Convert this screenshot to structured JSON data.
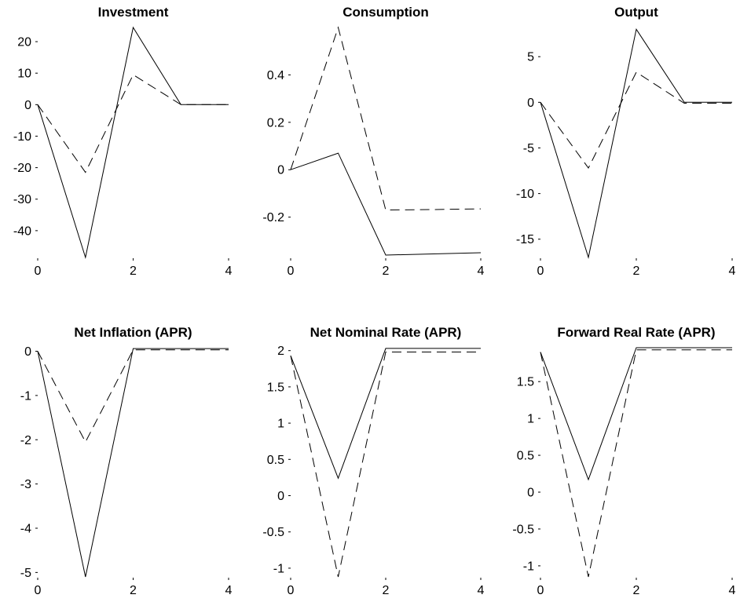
{
  "chart_data": [
    {
      "type": "line",
      "title": "Investment",
      "xlim": [
        0,
        4
      ],
      "ylim": [
        -48.5,
        24.5
      ],
      "xticks": [
        0,
        2,
        4
      ],
      "xtick_labels": [
        "0",
        "2",
        "4"
      ],
      "yticks": [
        20,
        10,
        0,
        -10,
        -20,
        -30,
        -40
      ],
      "ytick_labels": [
        "20",
        "10",
        "0",
        "-10",
        "-20",
        "-30",
        "-40"
      ],
      "series": [
        {
          "style": "solid",
          "x": [
            0,
            1,
            2,
            3,
            4
          ],
          "y": [
            0,
            -48.5,
            24.5,
            0,
            0
          ]
        },
        {
          "style": "dashed",
          "x": [
            0,
            1,
            2,
            3,
            4
          ],
          "y": [
            0,
            -21.5,
            9.5,
            0,
            0
          ]
        }
      ]
    },
    {
      "type": "line",
      "title": "Consumption",
      "xlim": [
        0,
        4
      ],
      "ylim": [
        -0.37,
        0.6
      ],
      "xticks": [
        0,
        2,
        4
      ],
      "xtick_labels": [
        "0",
        "2",
        "4"
      ],
      "yticks": [
        0.4,
        0.2,
        0,
        -0.2
      ],
      "ytick_labels": [
        "0.4",
        "0.2",
        "0",
        "-0.2"
      ],
      "series": [
        {
          "style": "solid",
          "x": [
            0,
            1,
            2,
            3,
            4
          ],
          "y": [
            0,
            0.07,
            -0.36,
            -0.355,
            -0.35
          ]
        },
        {
          "style": "dashed",
          "x": [
            0,
            1,
            2,
            3,
            4
          ],
          "y": [
            0,
            0.6,
            -0.17,
            -0.168,
            -0.165
          ]
        }
      ]
    },
    {
      "type": "line",
      "title": "Output",
      "xlim": [
        0,
        4
      ],
      "ylim": [
        -17,
        8.2
      ],
      "xticks": [
        0,
        2,
        4
      ],
      "xtick_labels": [
        "0",
        "2",
        "4"
      ],
      "yticks": [
        5,
        0,
        -5,
        -10,
        -15
      ],
      "ytick_labels": [
        "5",
        "0",
        "-5",
        "-10",
        "-15"
      ],
      "series": [
        {
          "style": "solid",
          "x": [
            0,
            1,
            2,
            3,
            4
          ],
          "y": [
            0,
            -17,
            8,
            0,
            0
          ]
        },
        {
          "style": "dashed",
          "x": [
            0,
            1,
            2,
            3,
            4
          ],
          "y": [
            0,
            -7.2,
            3.3,
            -0.1,
            -0.1
          ]
        }
      ]
    },
    {
      "type": "line",
      "title": "Net Inflation (APR)",
      "xlim": [
        0,
        4
      ],
      "ylim": [
        -5.1,
        0.08
      ],
      "xticks": [
        0,
        2,
        4
      ],
      "xtick_labels": [
        "0",
        "2",
        "4"
      ],
      "yticks": [
        0,
        -1,
        -2,
        -3,
        -4,
        -5
      ],
      "ytick_labels": [
        "0",
        "-1",
        "-2",
        "-3",
        "-4",
        "-5"
      ],
      "series": [
        {
          "style": "solid",
          "x": [
            0,
            1,
            2,
            3,
            4
          ],
          "y": [
            0,
            -5.1,
            0.06,
            0.06,
            0.06
          ]
        },
        {
          "style": "dashed",
          "x": [
            0,
            1,
            2,
            3,
            4
          ],
          "y": [
            0,
            -2.05,
            0.03,
            0.03,
            0.03
          ]
        }
      ]
    },
    {
      "type": "line",
      "title": "Net Nominal Rate (APR)",
      "xlim": [
        0,
        4
      ],
      "ylim": [
        -1.12,
        2.04
      ],
      "xticks": [
        0,
        2,
        4
      ],
      "xtick_labels": [
        "0",
        "2",
        "4"
      ],
      "yticks": [
        2,
        1.5,
        1,
        0.5,
        0,
        -0.5,
        -1
      ],
      "ytick_labels": [
        "2",
        "1.5",
        "1",
        "0.5",
        "0",
        "-0.5",
        "-1"
      ],
      "series": [
        {
          "style": "solid",
          "x": [
            0,
            1,
            2,
            3,
            4
          ],
          "y": [
            1.93,
            0.24,
            2.03,
            2.03,
            2.03
          ]
        },
        {
          "style": "dashed",
          "x": [
            0,
            1,
            2,
            3,
            4
          ],
          "y": [
            1.93,
            -1.12,
            1.98,
            1.98,
            1.98
          ]
        }
      ]
    },
    {
      "type": "line",
      "title": "Forward Real Rate (APR)",
      "xlim": [
        0,
        4
      ],
      "ylim": [
        -1.15,
        1.96
      ],
      "xticks": [
        0,
        2,
        4
      ],
      "xtick_labels": [
        "0",
        "2",
        "4"
      ],
      "yticks": [
        1.5,
        1,
        0.5,
        0,
        -0.5,
        -1
      ],
      "ytick_labels": [
        "1.5",
        "1",
        "0.5",
        "0",
        "-0.5",
        "-1"
      ],
      "series": [
        {
          "style": "solid",
          "x": [
            0,
            1,
            2,
            3,
            4
          ],
          "y": [
            1.9,
            0.17,
            1.96,
            1.96,
            1.96
          ]
        },
        {
          "style": "dashed",
          "x": [
            0,
            1,
            2,
            3,
            4
          ],
          "y": [
            1.9,
            -1.15,
            1.93,
            1.93,
            1.93
          ]
        }
      ]
    }
  ]
}
